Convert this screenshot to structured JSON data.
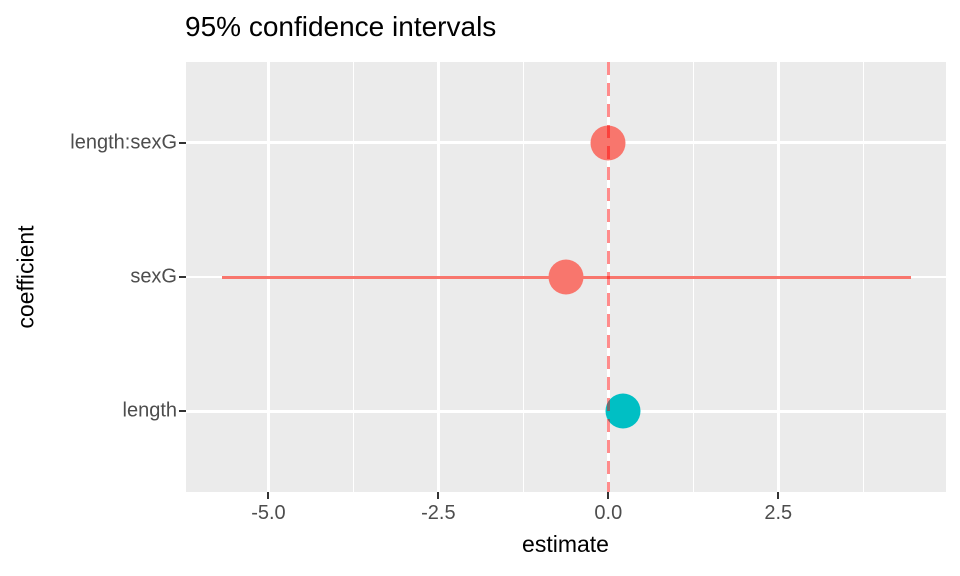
{
  "chart_data": {
    "type": "pointrange",
    "title": "95% confidence intervals",
    "xlabel": "estimate",
    "ylabel": "coefficient",
    "categories": [
      "length:sexG",
      "sexG",
      "length"
    ],
    "x_ticks": [
      -5.0,
      -2.5,
      0.0,
      2.5
    ],
    "x_tick_labels": [
      "-5.0",
      "-2.5",
      "0.0",
      "2.5"
    ],
    "x_minor_ticks": [
      -3.75,
      -1.25,
      1.25,
      3.75
    ],
    "xlim": [
      -6.22,
      4.96
    ],
    "grid": true,
    "legend": "none",
    "series": [
      {
        "coefficient": "length:sexG",
        "estimate": 0.0,
        "conf_low": null,
        "conf_high": null,
        "color": "#F8766D"
      },
      {
        "coefficient": "sexG",
        "estimate": -0.62,
        "conf_low": -5.68,
        "conf_high": 4.45,
        "color": "#F8766D"
      },
      {
        "coefficient": "length",
        "estimate": 0.21,
        "conf_low": null,
        "conf_high": null,
        "color": "#00BFC4"
      }
    ],
    "vline": {
      "x": 0.0,
      "linetype": "dashed",
      "color": "#FF0000",
      "alpha": 0.45
    }
  },
  "colors": {
    "panel_bg": "#EBEBEB",
    "grid": "#FFFFFF",
    "tick_mark": "#333333",
    "tick_label": "#4D4D4D",
    "title_text": "#000000",
    "point_red": "#F8766D",
    "point_teal": "#00BFC4"
  }
}
